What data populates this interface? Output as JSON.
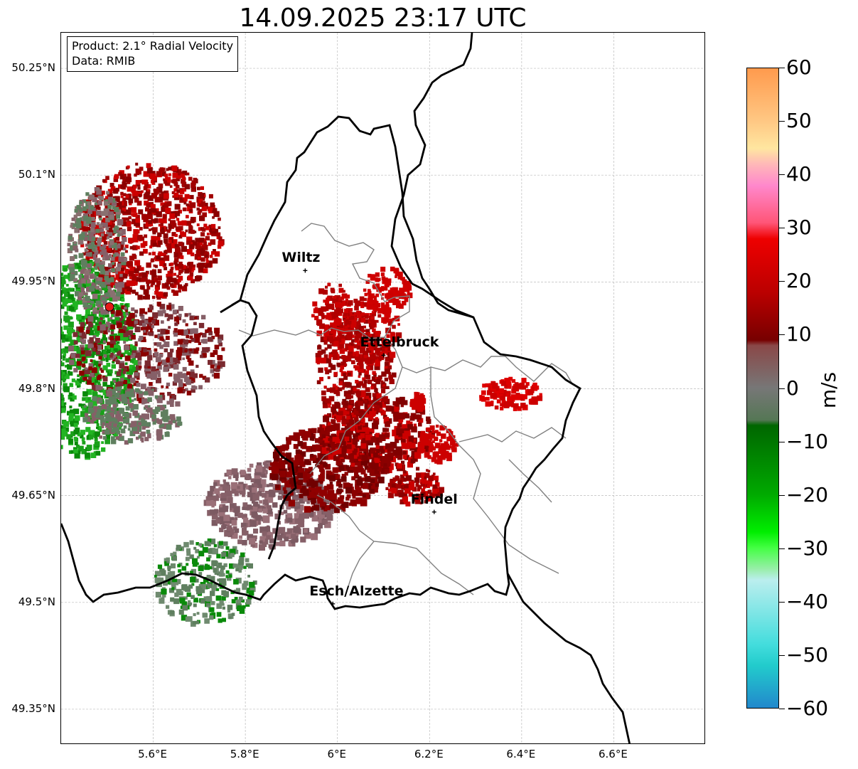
{
  "title": "14.09.2025 23:17 UTC",
  "info_box": {
    "product": "Product: 2.1° Radial Velocity",
    "data": "Data: RMIB"
  },
  "axes": {
    "lon_ticks": [
      {
        "value": 5.6,
        "label": "5.6°E"
      },
      {
        "value": 5.8,
        "label": "5.8°E"
      },
      {
        "value": 6.0,
        "label": "6°E"
      },
      {
        "value": 6.2,
        "label": "6.2°E"
      },
      {
        "value": 6.4,
        "label": "6.4°E"
      },
      {
        "value": 6.6,
        "label": "6.6°E"
      }
    ],
    "lat_ticks": [
      {
        "value": 50.25,
        "label": "50.25°N"
      },
      {
        "value": 50.1,
        "label": "50.1°N"
      },
      {
        "value": 49.95,
        "label": "49.95°N"
      },
      {
        "value": 49.8,
        "label": "49.8°N"
      },
      {
        "value": 49.65,
        "label": "49.65°N"
      },
      {
        "value": 49.5,
        "label": "49.5°N"
      },
      {
        "value": 49.35,
        "label": "49.35°N"
      }
    ],
    "lon_range": [
      5.4,
      6.8
    ],
    "lat_range": [
      49.3,
      50.3
    ],
    "grid": true
  },
  "cities": [
    {
      "name": "Wiltz",
      "lon": 5.93,
      "lat": 49.966
    },
    {
      "name": "Ettelbruck",
      "lon": 6.1,
      "lat": 49.847
    },
    {
      "name": "Findel",
      "lon": 6.21,
      "lat": 49.627
    },
    {
      "name": "Esch/Alzette",
      "lon": 5.99,
      "lat": 49.498
    }
  ],
  "radar_site": {
    "lon": 5.505,
    "lat": 49.915,
    "color": "#e61919"
  },
  "colorbar": {
    "unit": "m/s",
    "min": -60,
    "max": 60,
    "ticks": [
      {
        "value": 60,
        "label": "60"
      },
      {
        "value": 50,
        "label": "50"
      },
      {
        "value": 40,
        "label": "40"
      },
      {
        "value": 30,
        "label": "30"
      },
      {
        "value": 20,
        "label": "20"
      },
      {
        "value": 10,
        "label": "10"
      },
      {
        "value": 0,
        "label": "0"
      },
      {
        "value": -10,
        "label": "−10"
      },
      {
        "value": -20,
        "label": "−20"
      },
      {
        "value": -30,
        "label": "−30"
      },
      {
        "value": -40,
        "label": "−40"
      },
      {
        "value": -50,
        "label": "−50"
      },
      {
        "value": -60,
        "label": "−60"
      }
    ],
    "stops": [
      {
        "value": 60,
        "color": "#ff9a4d"
      },
      {
        "value": 50,
        "color": "#ffc884"
      },
      {
        "value": 45,
        "color": "#ffe6a0"
      },
      {
        "value": 42,
        "color": "#ffb8b8"
      },
      {
        "value": 38,
        "color": "#ff88cc"
      },
      {
        "value": 31,
        "color": "#ff5577"
      },
      {
        "value": 28,
        "color": "#ee0000"
      },
      {
        "value": 18,
        "color": "#bb0000"
      },
      {
        "value": 9,
        "color": "#770000"
      },
      {
        "value": 8,
        "color": "#8a4848"
      },
      {
        "value": 0,
        "color": "#777777"
      },
      {
        "value": -6,
        "color": "#557755"
      },
      {
        "value": -7,
        "color": "#006600"
      },
      {
        "value": -20,
        "color": "#00aa00"
      },
      {
        "value": -27,
        "color": "#00ee00"
      },
      {
        "value": -30,
        "color": "#44ff44"
      },
      {
        "value": -34,
        "color": "#99eeaa"
      },
      {
        "value": -36,
        "color": "#bbeeee"
      },
      {
        "value": -48,
        "color": "#44dddd"
      },
      {
        "value": -52,
        "color": "#22cccc"
      },
      {
        "value": -60,
        "color": "#2288cc"
      }
    ]
  },
  "colors": {
    "grid": "#bbbbbb",
    "national_border": "#000000",
    "canton_border": "#808080",
    "velocity_green": "#1aa01a",
    "velocity_grey_green": "#5f7f5f",
    "velocity_grey_red": "#866068",
    "velocity_dark_red": "#8b0000",
    "velocity_red": "#cc0000"
  }
}
